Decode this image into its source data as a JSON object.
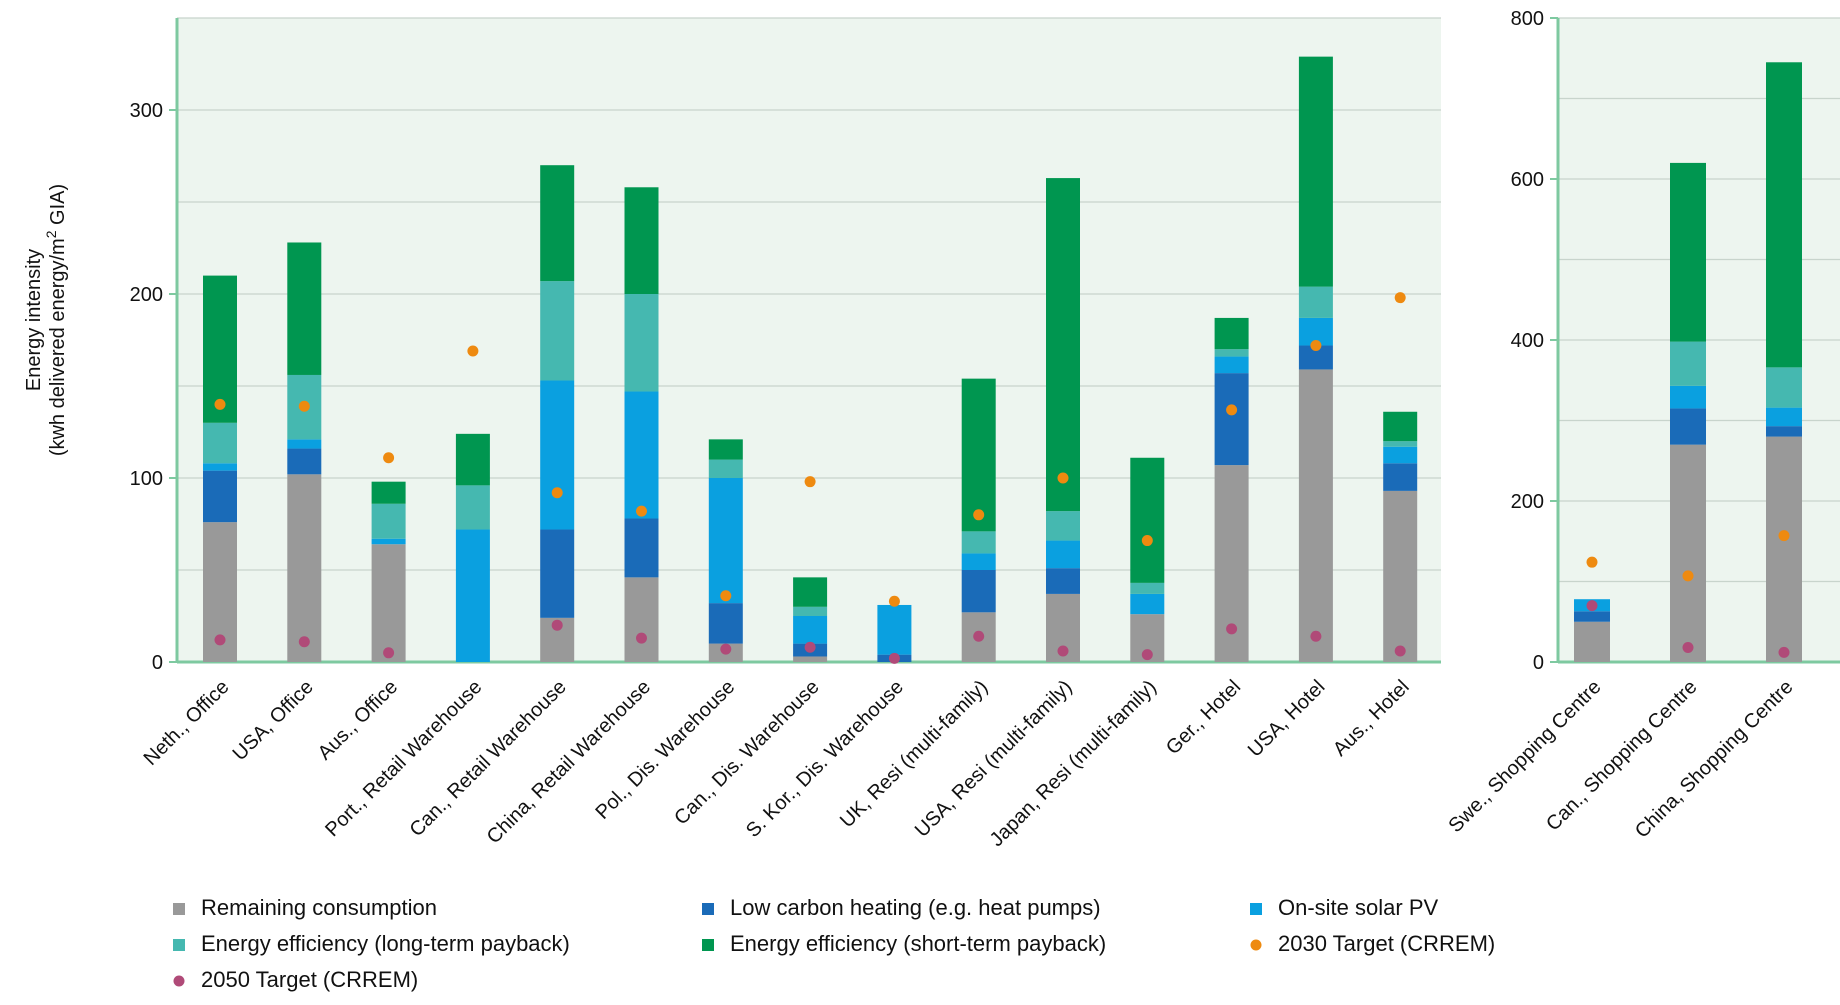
{
  "colors": {
    "remaining": "#999999",
    "low_carbon": "#1a6bb8",
    "solar": "#0aa0e0",
    "ee_long": "#45b8b0",
    "ee_short": "#009650",
    "target_2030": "#ee8a10",
    "target_2050": "#b04a78",
    "plot_bg": "#edf5ef",
    "axis": "#7ec9a0",
    "grid": "#c8d4cc"
  },
  "chart_data": [
    {
      "type": "bar",
      "stacked": true,
      "ylabel_line1": "Energy intensity",
      "ylabel_line2": "(kwh delivered energy/m",
      "ylabel_sup": "2",
      "ylabel_line2_end": " GIA)",
      "ylim": [
        0,
        350
      ],
      "yticks": [
        0,
        100,
        200,
        300
      ],
      "grid": true,
      "categories": [
        "Neth., Office",
        "USA, Office",
        "Aus., Office",
        "Port., Retail Warehouse",
        "Can., Retail Warehouse",
        "China, Retail Warehouse",
        "Pol., Dis. Warehouse",
        "Can., Dis. Warehouse",
        "S. Kor., Dis. Warehouse",
        "UK, Resi (multi-family)",
        "USA, Resi (multi-family)",
        "Japan, Resi (multi-family)",
        "Ger., Hotel",
        "USA, Hotel",
        "Aus., Hotel"
      ],
      "series": [
        {
          "key": "remaining",
          "values": [
            76,
            102,
            64,
            0,
            24,
            46,
            10,
            3,
            0,
            27,
            37,
            26,
            107,
            159,
            93
          ]
        },
        {
          "key": "low_carbon",
          "values": [
            28,
            14,
            0,
            0,
            48,
            32,
            22,
            7,
            4,
            23,
            14,
            0,
            50,
            13,
            15
          ]
        },
        {
          "key": "solar",
          "values": [
            4,
            5,
            3,
            72,
            81,
            69,
            68,
            15,
            27,
            9,
            15,
            11,
            9,
            15,
            9
          ]
        },
        {
          "key": "ee_long",
          "values": [
            22,
            35,
            19,
            24,
            54,
            53,
            10,
            5,
            0,
            12,
            16,
            6,
            4,
            17,
            3
          ]
        },
        {
          "key": "ee_short",
          "values": [
            80,
            72,
            12,
            28,
            63,
            58,
            11,
            16,
            0,
            83,
            181,
            68,
            17,
            125,
            16
          ]
        }
      ],
      "target_2030": [
        140,
        139,
        111,
        169,
        92,
        82,
        36,
        98,
        33,
        80,
        100,
        66,
        137,
        172,
        198
      ],
      "target_2050": [
        12,
        11,
        5,
        null,
        20,
        13,
        7,
        8,
        2,
        14,
        6,
        4,
        18,
        14,
        6
      ]
    },
    {
      "type": "bar",
      "stacked": true,
      "ylim": [
        0,
        800
      ],
      "yticks": [
        0,
        200,
        400,
        600,
        800
      ],
      "grid": true,
      "categories": [
        "Swe., Shopping Centre",
        "Can., Shopping Centre",
        "China, Shopping Centre"
      ],
      "series": [
        {
          "key": "remaining",
          "values": [
            50,
            270,
            280
          ]
        },
        {
          "key": "low_carbon",
          "values": [
            13,
            45,
            13
          ]
        },
        {
          "key": "solar",
          "values": [
            15,
            28,
            23
          ]
        },
        {
          "key": "ee_long",
          "values": [
            0,
            55,
            50
          ]
        },
        {
          "key": "ee_short",
          "values": [
            0,
            222,
            379
          ]
        }
      ],
      "target_2030": [
        124,
        107,
        157
      ],
      "target_2050": [
        70,
        18,
        12
      ]
    }
  ],
  "legend": [
    {
      "key": "remaining",
      "label": "Remaining consumption",
      "marker": "square"
    },
    {
      "key": "low_carbon",
      "label": "Low carbon heating (e.g. heat pumps)",
      "marker": "square"
    },
    {
      "key": "solar",
      "label": "On-site solar PV",
      "marker": "square"
    },
    {
      "key": "ee_long",
      "label": "Energy efficiency (long-term payback)",
      "marker": "square"
    },
    {
      "key": "ee_short",
      "label": "Energy efficiency (short-term payback)",
      "marker": "square"
    },
    {
      "key": "target_2030",
      "label": "2030 Target (CRREM)",
      "marker": "dot"
    },
    {
      "key": "target_2050",
      "label": "2050 Target (CRREM)",
      "marker": "dot"
    }
  ]
}
